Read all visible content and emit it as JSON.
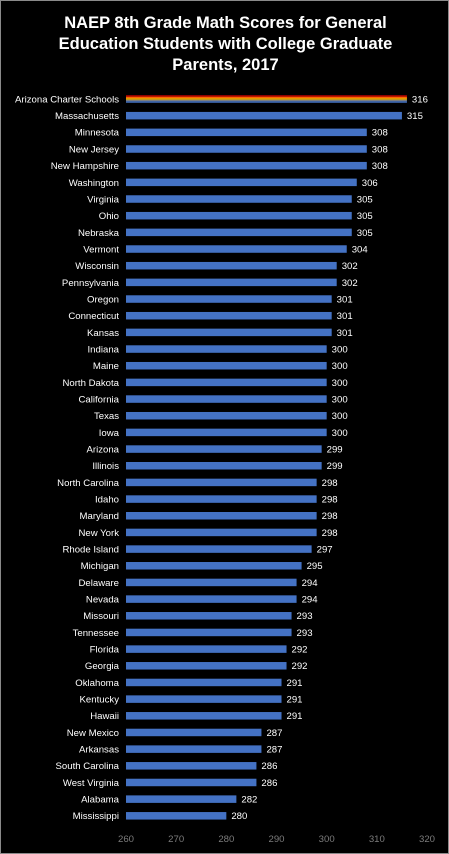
{
  "chart_data": {
    "type": "bar",
    "orientation": "horizontal",
    "title_lines": [
      "NAEP 8th Grade Math Scores for General",
      "Education Students with College Graduate",
      "Parents, 2017"
    ],
    "categories": [
      "Arizona Charter Schools",
      "Massachusetts",
      "Minnesota",
      "New Jersey",
      "New Hampshire",
      "Washington",
      "Virginia",
      "Ohio",
      "Nebraska",
      "Vermont",
      "Wisconsin",
      "Pennsylvania",
      "Oregon",
      "Connecticut",
      "Kansas",
      "Indiana",
      "Maine",
      "North Dakota",
      "California",
      "Texas",
      "Iowa",
      "Arizona",
      "Illinois",
      "North Carolina",
      "Idaho",
      "Maryland",
      "New York",
      "Rhode Island",
      "Michigan",
      "Delaware",
      "Nevada",
      "Missouri",
      "Tennessee",
      "Florida",
      "Georgia",
      "Oklahoma",
      "Kentucky",
      "Hawaii",
      "New Mexico",
      "Arkansas",
      "South Carolina",
      "West Virginia",
      "Alabama",
      "Mississippi"
    ],
    "values": [
      316,
      315,
      308,
      308,
      308,
      306,
      305,
      305,
      305,
      304,
      302,
      302,
      301,
      301,
      301,
      300,
      300,
      300,
      300,
      300,
      300,
      299,
      299,
      298,
      298,
      298,
      298,
      297,
      295,
      294,
      294,
      293,
      293,
      292,
      292,
      291,
      291,
      291,
      287,
      287,
      286,
      286,
      282,
      280
    ],
    "xlim": [
      260,
      320
    ],
    "xticks": [
      "260",
      "270",
      "280",
      "290",
      "300",
      "310",
      "320"
    ],
    "grid": false,
    "legend": "none",
    "colors": {
      "bar": "#4472c4",
      "background": "#000000",
      "highlight_stripes": [
        "#c00000",
        "#ff6600",
        "#ffc000",
        "#7f7f7f",
        "#4472c4"
      ]
    }
  }
}
